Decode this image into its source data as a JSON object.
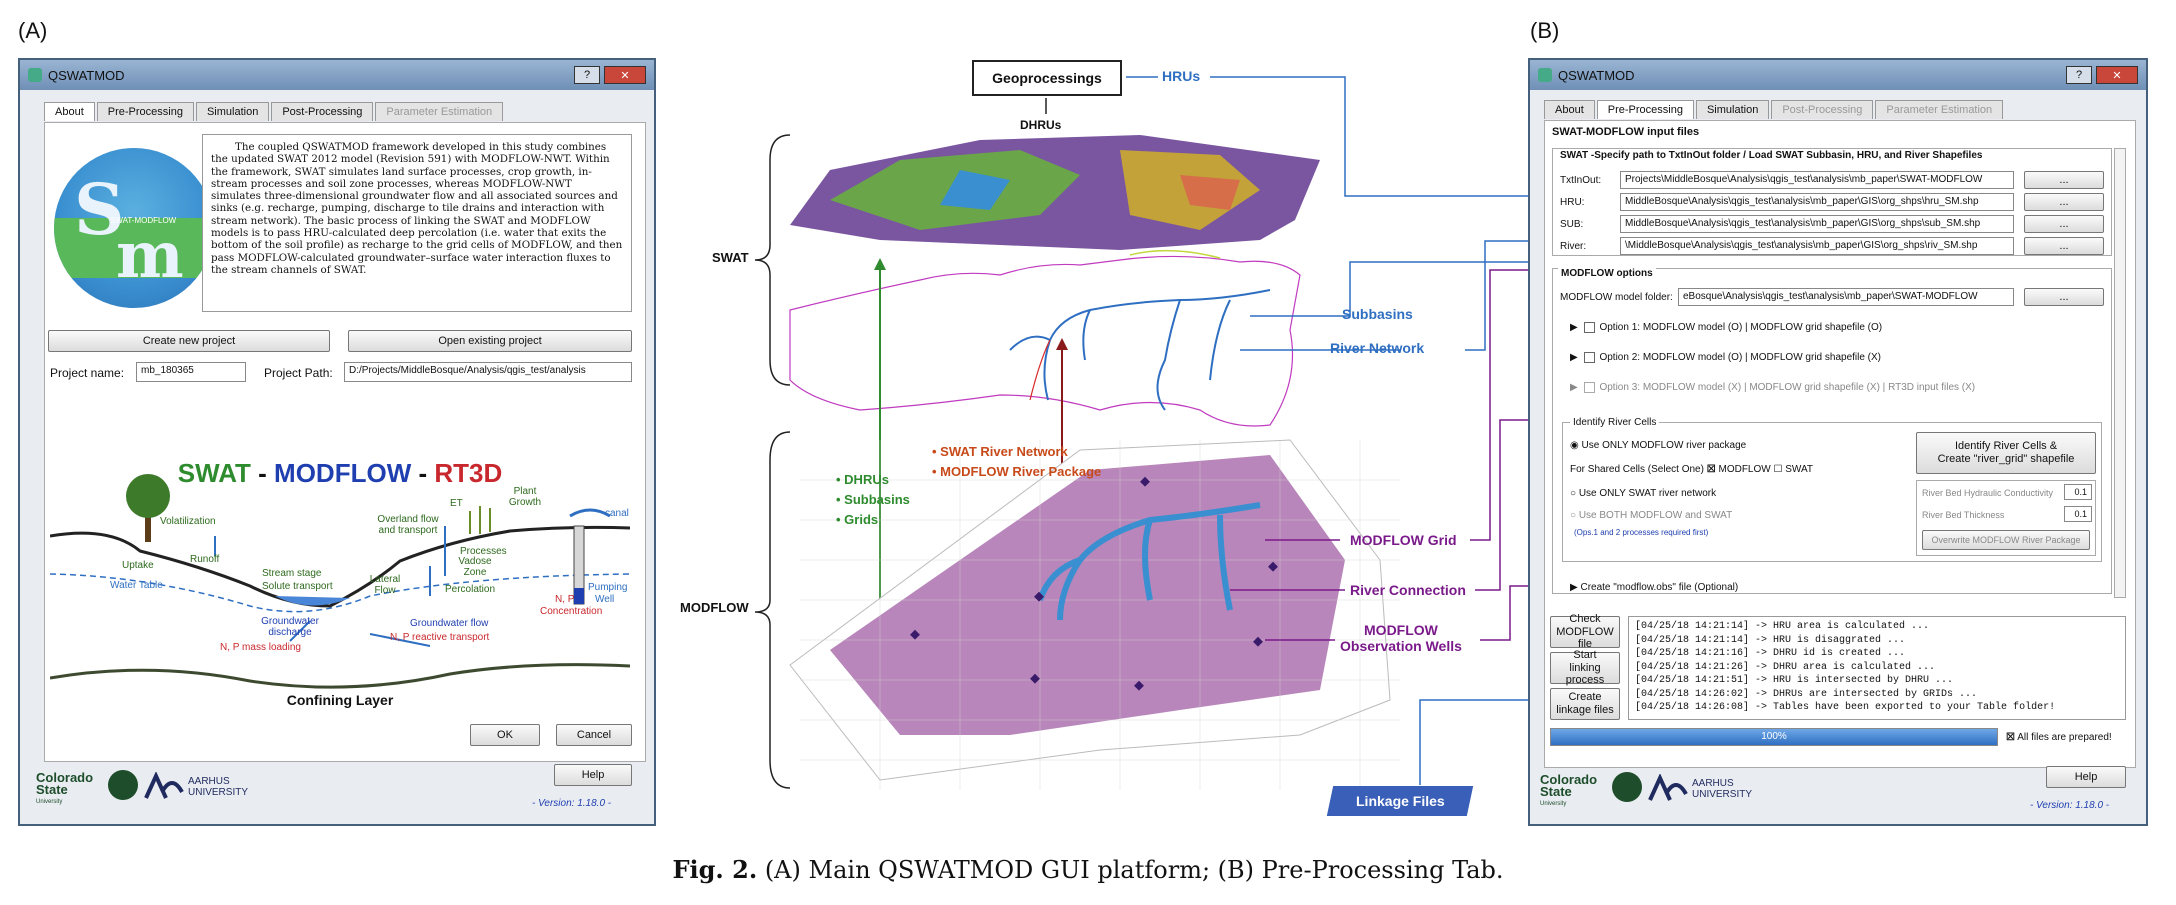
{
  "panel_a_label": "(A)",
  "panel_b_label": "(B)",
  "window_a": {
    "title": "QSWATMOD",
    "help_btn": "?",
    "close_btn": "✕",
    "tabs": [
      "About",
      "Pre-Processing",
      "Simulation",
      "Post-Processing",
      "Parameter Estimation"
    ],
    "logo_text": "SWAT-MODFLOW",
    "description": "The coupled QSWATMOD framework developed in this study combines the updated SWAT 2012 model (Revision 591) with MODFLOW-NWT. Within the framework, SWAT simulates land surface processes, crop growth, in-stream processes and soil zone processes, whereas MODFLOW-NWT simulates three-dimensional groundwater flow and all associated sources and sinks (e.g. recharge, pumping, discharge to tile drains and interaction with stream network). The basic process of linking the SWAT and MODFLOW models is to pass HRU-calculated deep percolation (i.e. water that exits the bottom of the soil profile) as recharge to the grid cells of MODFLOW, and then pass MODFLOW-calculated groundwater–surface water interaction fluxes to the stream channels of SWAT.",
    "create_btn": "Create new project",
    "open_btn": "Open existing project",
    "project_name_label": "Project name:",
    "project_name_value": "mb_180365",
    "project_path_label": "Project Path:",
    "project_path_value": "D:/Projects/MiddleBosque/Analysis/qgis_test/analysis",
    "diagram": {
      "title_swat": "SWAT",
      "title_dash1": " - ",
      "title_modflow": "MODFLOW",
      "title_dash2": " - ",
      "title_rt3d": "RT3D",
      "volatilization": "Volatilization",
      "et": "ET",
      "plant_growth": "Plant Growth",
      "canal": "canal",
      "overland": "Overland flow and transport",
      "runoff": "Runoff",
      "uptake": "Uptake",
      "water_table": "Water Table",
      "stream_stage": "Stream stage",
      "solute_transport": "Solute transport",
      "lateral": "Lateral Flow",
      "vadose": "Vadose Zone",
      "percolation": "Percolation",
      "processes": "Processes",
      "pumping": "Pumping",
      "well": "Well",
      "np": "N, P",
      "concentration": "Concentration",
      "gw_discharge": "Groundwater discharge",
      "np_mass": "N, P mass loading",
      "gw_flow": "Groundwater flow",
      "np_reactive": "N, P reactive transport",
      "confining": "Confining Layer"
    },
    "ok_btn": "OK",
    "cancel_btn": "Cancel",
    "help_button": "Help",
    "csu_text": "Colorado State",
    "csu_sub": "University",
    "aarhus_text": "AARHUS UNIVERSITY",
    "version": "- Version: 1.18.0 -"
  },
  "center": {
    "geoprocessings": "Geoprocessings",
    "hrus": "HRUs",
    "dhrus": "DHRUs",
    "swat": "SWAT",
    "modflow": "MODFLOW",
    "subbasins": "Subbasins",
    "river_network": "River Network",
    "list_green": [
      "DHRUs",
      "Subbasins",
      "Grids"
    ],
    "list_red": [
      "SWAT River Network",
      "MODFLOW River Package"
    ],
    "modflow_grid": "MODFLOW Grid",
    "river_connection": "River Connection",
    "obs_wells_1": "MODFLOW",
    "obs_wells_2": "Observation Wells",
    "linkage_files": "Linkage Files"
  },
  "window_b": {
    "title": "QSWATMOD",
    "tabs": [
      "About",
      "Pre-Processing",
      "Simulation",
      "Post-Processing",
      "Parameter Estimation"
    ],
    "section_title": "SWAT-MODFLOW input files",
    "swat_group": "SWAT -Specify path to TxtInOut folder / Load SWAT Subbasin, HRU, and River Shapefiles",
    "rows": [
      {
        "label": "TxtInOut:",
        "value": "Projects\\MiddleBosque\\Analysis\\qgis_test\\analysis\\mb_paper\\SWAT-MODFLOW"
      },
      {
        "label": "HRU:",
        "value": "MiddleBosque\\Analysis\\qgis_test\\analysis\\mb_paper\\GIS\\org_shps\\hru_SM.shp"
      },
      {
        "label": "SUB:",
        "value": "MiddleBosque\\Analysis\\qgis_test\\analysis\\mb_paper\\GIS\\org_shps\\sub_SM.shp"
      },
      {
        "label": "River:",
        "value": "\\MiddleBosque\\Analysis\\qgis_test\\analysis\\mb_paper\\GIS\\org_shps\\riv_SM.shp"
      }
    ],
    "browse": "...",
    "modflow_options": "MODFLOW options",
    "model_folder_label": "MODFLOW model folder:",
    "model_folder_value": "eBosque\\Analysis\\qgis_test\\analysis\\mb_paper\\SWAT-MODFLOW",
    "option1": "Option 1: MODFLOW model (O)  |  MODFLOW grid shapefile (O)",
    "option2": "Option 2: MODFLOW model (O)  |  MODFLOW grid shapefile (X)",
    "option3": "Option 3: MODFLOW model (X)  |  MODFLOW grid shapefile (X)  |  RT3D input files (X)",
    "identify_river": "Identify River Cells",
    "use_only_modflow": "Use ONLY MODFLOW river package",
    "shared_cells": "For Shared Cells (Select One)",
    "modflow_cb": "MODFLOW",
    "swat_cb": "SWAT",
    "use_only_swat": "Use ONLY SWAT river network",
    "use_both": "Use BOTH MODFLOW and SWAT",
    "ops_note": "(Ops.1 and 2 processes required first)",
    "identify_btn_1": "Identify River Cells &",
    "identify_btn_2": "Create \"river_grid\" shapefile",
    "conductivity_label": "River Bed Hydraulic Conductivity",
    "conductivity_value": "0.1",
    "thickness_label": "River Bed Thickness",
    "thickness_value": "0.1",
    "overwrite_btn": "Overwrite MODFLOW River Package",
    "create_obs": "Create \"modflow.obs\" file (Optional)",
    "check_btn_1": "Check",
    "check_btn_2": "MODFLOW file",
    "start_btn_1": "Start",
    "start_btn_2": "linking process",
    "create_btn_1": "Create",
    "create_btn_2": "linkage files",
    "log": [
      "[04/25/18 14:21:14] -> HRU area is calculated ...",
      "[04/25/18 14:21:14] -> HRU is disaggrated ...",
      "[04/25/18 14:21:16] -> DHRU id is created ...",
      "[04/25/18 14:21:26] -> DHRU area is calculated ...",
      "[04/25/18 14:21:51] -> HRU is intersected by DHRU ...",
      "[04/25/18 14:26:02] -> DHRUs are intersected by GRIDs ...",
      "[04/25/18 14:26:08] -> Tables have been exported to your Table folder!"
    ],
    "progress": 100,
    "progress_text": "100%",
    "all_prepared": "All files are prepared!",
    "help_button": "Help",
    "csu_text": "Colorado State",
    "csu_sub": "University",
    "aarhus_text": "AARHUS UNIVERSITY",
    "version": "- Version: 1.18.0 -"
  },
  "caption": {
    "bold": "Fig. 2.",
    "text": " (A) Main QSWATMOD GUI platform; (B) Pre-Processing Tab."
  },
  "colors": {
    "swat_green": "#2e8b2e",
    "modflow_blue": "#1f3fb0",
    "rt3d_red": "#c8282d",
    "link_blue": "#2f6fc2",
    "purple": "#7a1a8a",
    "grid_pink": "#b886ba"
  }
}
